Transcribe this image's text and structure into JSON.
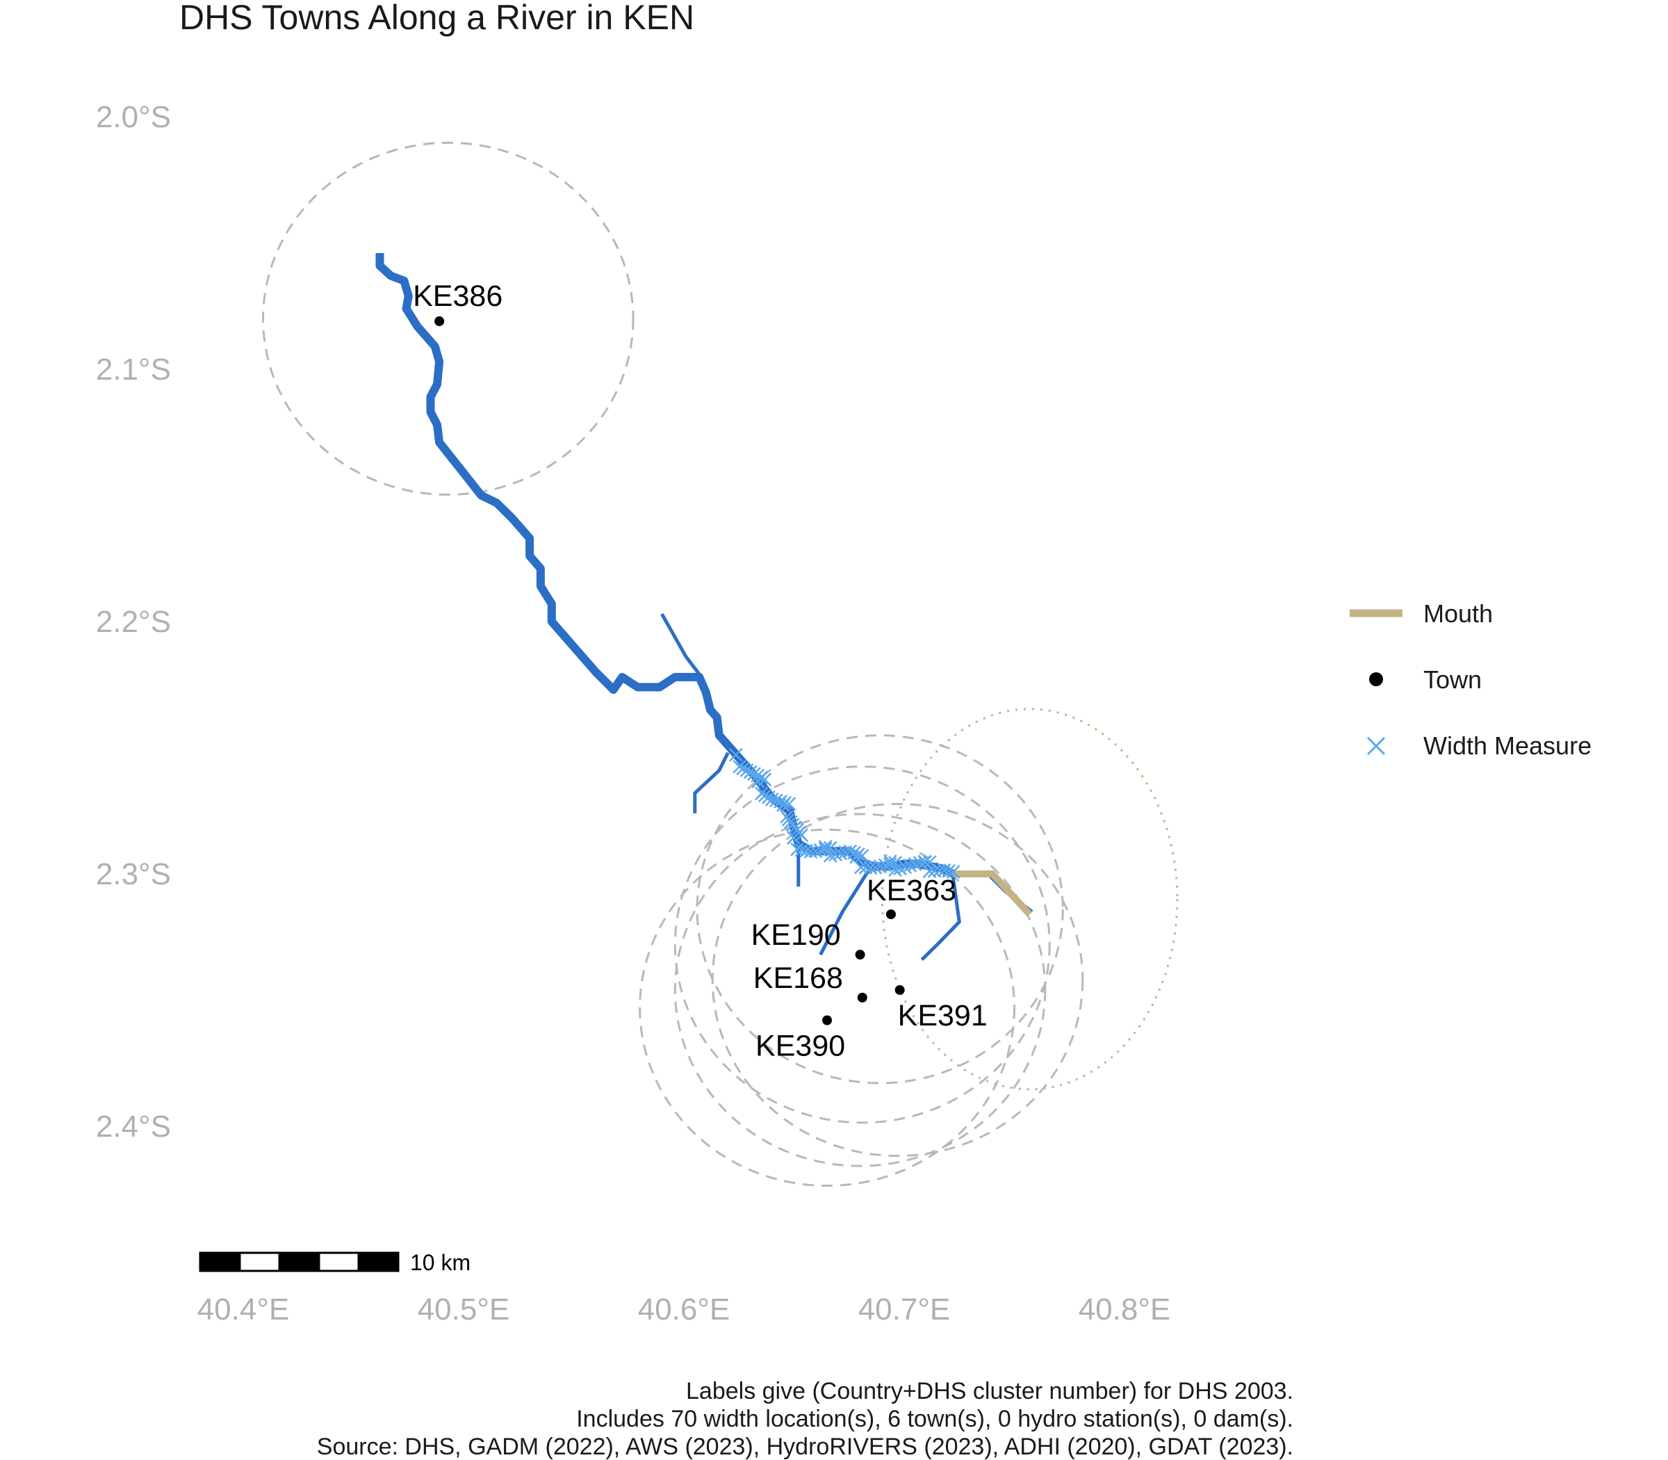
{
  "title": "DHS Towns Along a River in KEN",
  "axes": {
    "y_ticks": [
      {
        "value": -2.0,
        "label": "2.0°S"
      },
      {
        "value": -2.1,
        "label": "2.1°S"
      },
      {
        "value": -2.2,
        "label": "2.2°S"
      },
      {
        "value": -2.3,
        "label": "2.3°S"
      },
      {
        "value": -2.4,
        "label": "2.4°S"
      }
    ],
    "x_ticks": [
      {
        "value": 40.4,
        "label": "40.4°E"
      },
      {
        "value": 40.5,
        "label": "40.5°E"
      },
      {
        "value": 40.6,
        "label": "40.6°E"
      },
      {
        "value": 40.7,
        "label": "40.7°E"
      },
      {
        "value": 40.8,
        "label": "40.8°E"
      }
    ]
  },
  "legend": {
    "mouth_label": "Mouth",
    "town_label": "Town",
    "width_label": "Width Measure"
  },
  "colors": {
    "river": "#2a6ec6",
    "width_measure": "#5aa7ee",
    "mouth": "#c4b384",
    "town": "#000000",
    "buffer": "#b8b8b8",
    "tick_text": "#b0b0b0"
  },
  "towns": [
    {
      "id": "KE386",
      "lon": 40.489,
      "lat": -2.081
    },
    {
      "id": "KE363",
      "lon": 40.694,
      "lat": -2.316
    },
    {
      "id": "KE190",
      "lon": 40.68,
      "lat": -2.332
    },
    {
      "id": "KE168",
      "lon": 40.681,
      "lat": -2.349
    },
    {
      "id": "KE391",
      "lon": 40.698,
      "lat": -2.346
    },
    {
      "id": "KE390",
      "lon": 40.665,
      "lat": -2.358
    }
  ],
  "river_main": [
    [
      40.462,
      -2.054
    ],
    [
      40.462,
      -2.059
    ],
    [
      40.467,
      -2.063
    ],
    [
      40.473,
      -2.065
    ],
    [
      40.475,
      -2.071
    ],
    [
      40.474,
      -2.076
    ],
    [
      40.479,
      -2.083
    ],
    [
      40.487,
      -2.091
    ],
    [
      40.489,
      -2.097
    ],
    [
      40.488,
      -2.106
    ],
    [
      40.485,
      -2.111
    ],
    [
      40.485,
      -2.117
    ],
    [
      40.488,
      -2.122
    ],
    [
      40.489,
      -2.129
    ],
    [
      40.499,
      -2.14
    ],
    [
      40.508,
      -2.15
    ],
    [
      40.515,
      -2.153
    ],
    [
      40.522,
      -2.159
    ],
    [
      40.525,
      -2.162
    ],
    [
      40.53,
      -2.167
    ],
    [
      40.53,
      -2.174
    ],
    [
      40.535,
      -2.179
    ],
    [
      40.535,
      -2.186
    ],
    [
      40.54,
      -2.193
    ],
    [
      40.54,
      -2.2
    ],
    [
      40.551,
      -2.211
    ],
    [
      40.56,
      -2.22
    ],
    [
      40.568,
      -2.227
    ],
    [
      40.572,
      -2.222
    ],
    [
      40.579,
      -2.226
    ],
    [
      40.589,
      -2.226
    ],
    [
      40.596,
      -2.222
    ],
    [
      40.607,
      -2.222
    ],
    [
      40.61,
      -2.228
    ],
    [
      40.612,
      -2.235
    ],
    [
      40.615,
      -2.238
    ],
    [
      40.616,
      -2.245
    ],
    [
      40.625,
      -2.254
    ],
    [
      40.633,
      -2.262
    ],
    [
      40.64,
      -2.27
    ],
    [
      40.648,
      -2.275
    ],
    [
      40.65,
      -2.282
    ],
    [
      40.652,
      -2.288
    ],
    [
      40.658,
      -2.291
    ],
    [
      40.675,
      -2.291
    ],
    [
      40.68,
      -2.295
    ],
    [
      40.686,
      -2.297
    ],
    [
      40.69,
      -2.297
    ],
    [
      40.693,
      -2.297
    ],
    [
      40.7,
      -2.296
    ],
    [
      40.706,
      -2.296
    ],
    [
      40.712,
      -2.297
    ],
    [
      40.718,
      -2.298
    ],
    [
      40.722,
      -2.3
    ]
  ],
  "width_stretch": [
    [
      40.625,
      -2.254
    ],
    [
      40.633,
      -2.262
    ],
    [
      40.64,
      -2.27
    ],
    [
      40.648,
      -2.275
    ],
    [
      40.65,
      -2.282
    ],
    [
      40.652,
      -2.288
    ],
    [
      40.658,
      -2.291
    ],
    [
      40.675,
      -2.291
    ],
    [
      40.68,
      -2.295
    ],
    [
      40.686,
      -2.297
    ],
    [
      40.693,
      -2.297
    ],
    [
      40.706,
      -2.296
    ],
    [
      40.718,
      -2.298
    ],
    [
      40.722,
      -2.3
    ]
  ],
  "tributaries": [
    [
      [
        40.59,
        -2.197
      ],
      [
        40.601,
        -2.214
      ],
      [
        40.608,
        -2.222
      ]
    ],
    [
      [
        40.62,
        -2.252
      ],
      [
        40.616,
        -2.259
      ],
      [
        40.605,
        -2.268
      ],
      [
        40.605,
        -2.276
      ]
    ],
    [
      [
        40.652,
        -2.288
      ],
      [
        40.652,
        -2.305
      ]
    ],
    [
      [
        40.685,
        -2.297
      ],
      [
        40.672,
        -2.315
      ],
      [
        40.662,
        -2.332
      ]
    ],
    [
      [
        40.722,
        -2.3
      ],
      [
        40.725,
        -2.319
      ],
      [
        40.715,
        -2.328
      ],
      [
        40.708,
        -2.334
      ]
    ],
    [
      [
        40.738,
        -2.3
      ],
      [
        40.746,
        -2.307
      ],
      [
        40.758,
        -2.315
      ]
    ]
  ],
  "mouth": [
    [
      40.722,
      -2.3
    ],
    [
      40.74,
      -2.3
    ],
    [
      40.757,
      -2.316
    ]
  ],
  "buffers": [
    {
      "lon": 40.493,
      "lat": -2.08,
      "r": 0.084
    },
    {
      "lon": 40.689,
      "lat": -2.314,
      "r": 0.083
    },
    {
      "lon": 40.681,
      "lat": -2.328,
      "r": 0.085
    },
    {
      "lon": 40.68,
      "lat": -2.346,
      "r": 0.084
    },
    {
      "lon": 40.697,
      "lat": -2.342,
      "r": 0.084
    },
    {
      "lon": 40.665,
      "lat": -2.353,
      "r": 0.085
    }
  ],
  "mouth_buffer": {
    "lon": 40.757,
    "lat": -2.31,
    "r": 0.093
  },
  "scale_bar": {
    "label": "10 km",
    "segments": 5
  },
  "caption": [
    "Labels give (Country+DHS cluster number) for DHS 2003.",
    "Includes 70 width location(s), 6 town(s), 0 hydro station(s), 0 dam(s).",
    "Source: DHS, GADM (2022), AWS (2023), HydroRIVERS (2023), ADHI (2020), GDAT (2023)."
  ]
}
